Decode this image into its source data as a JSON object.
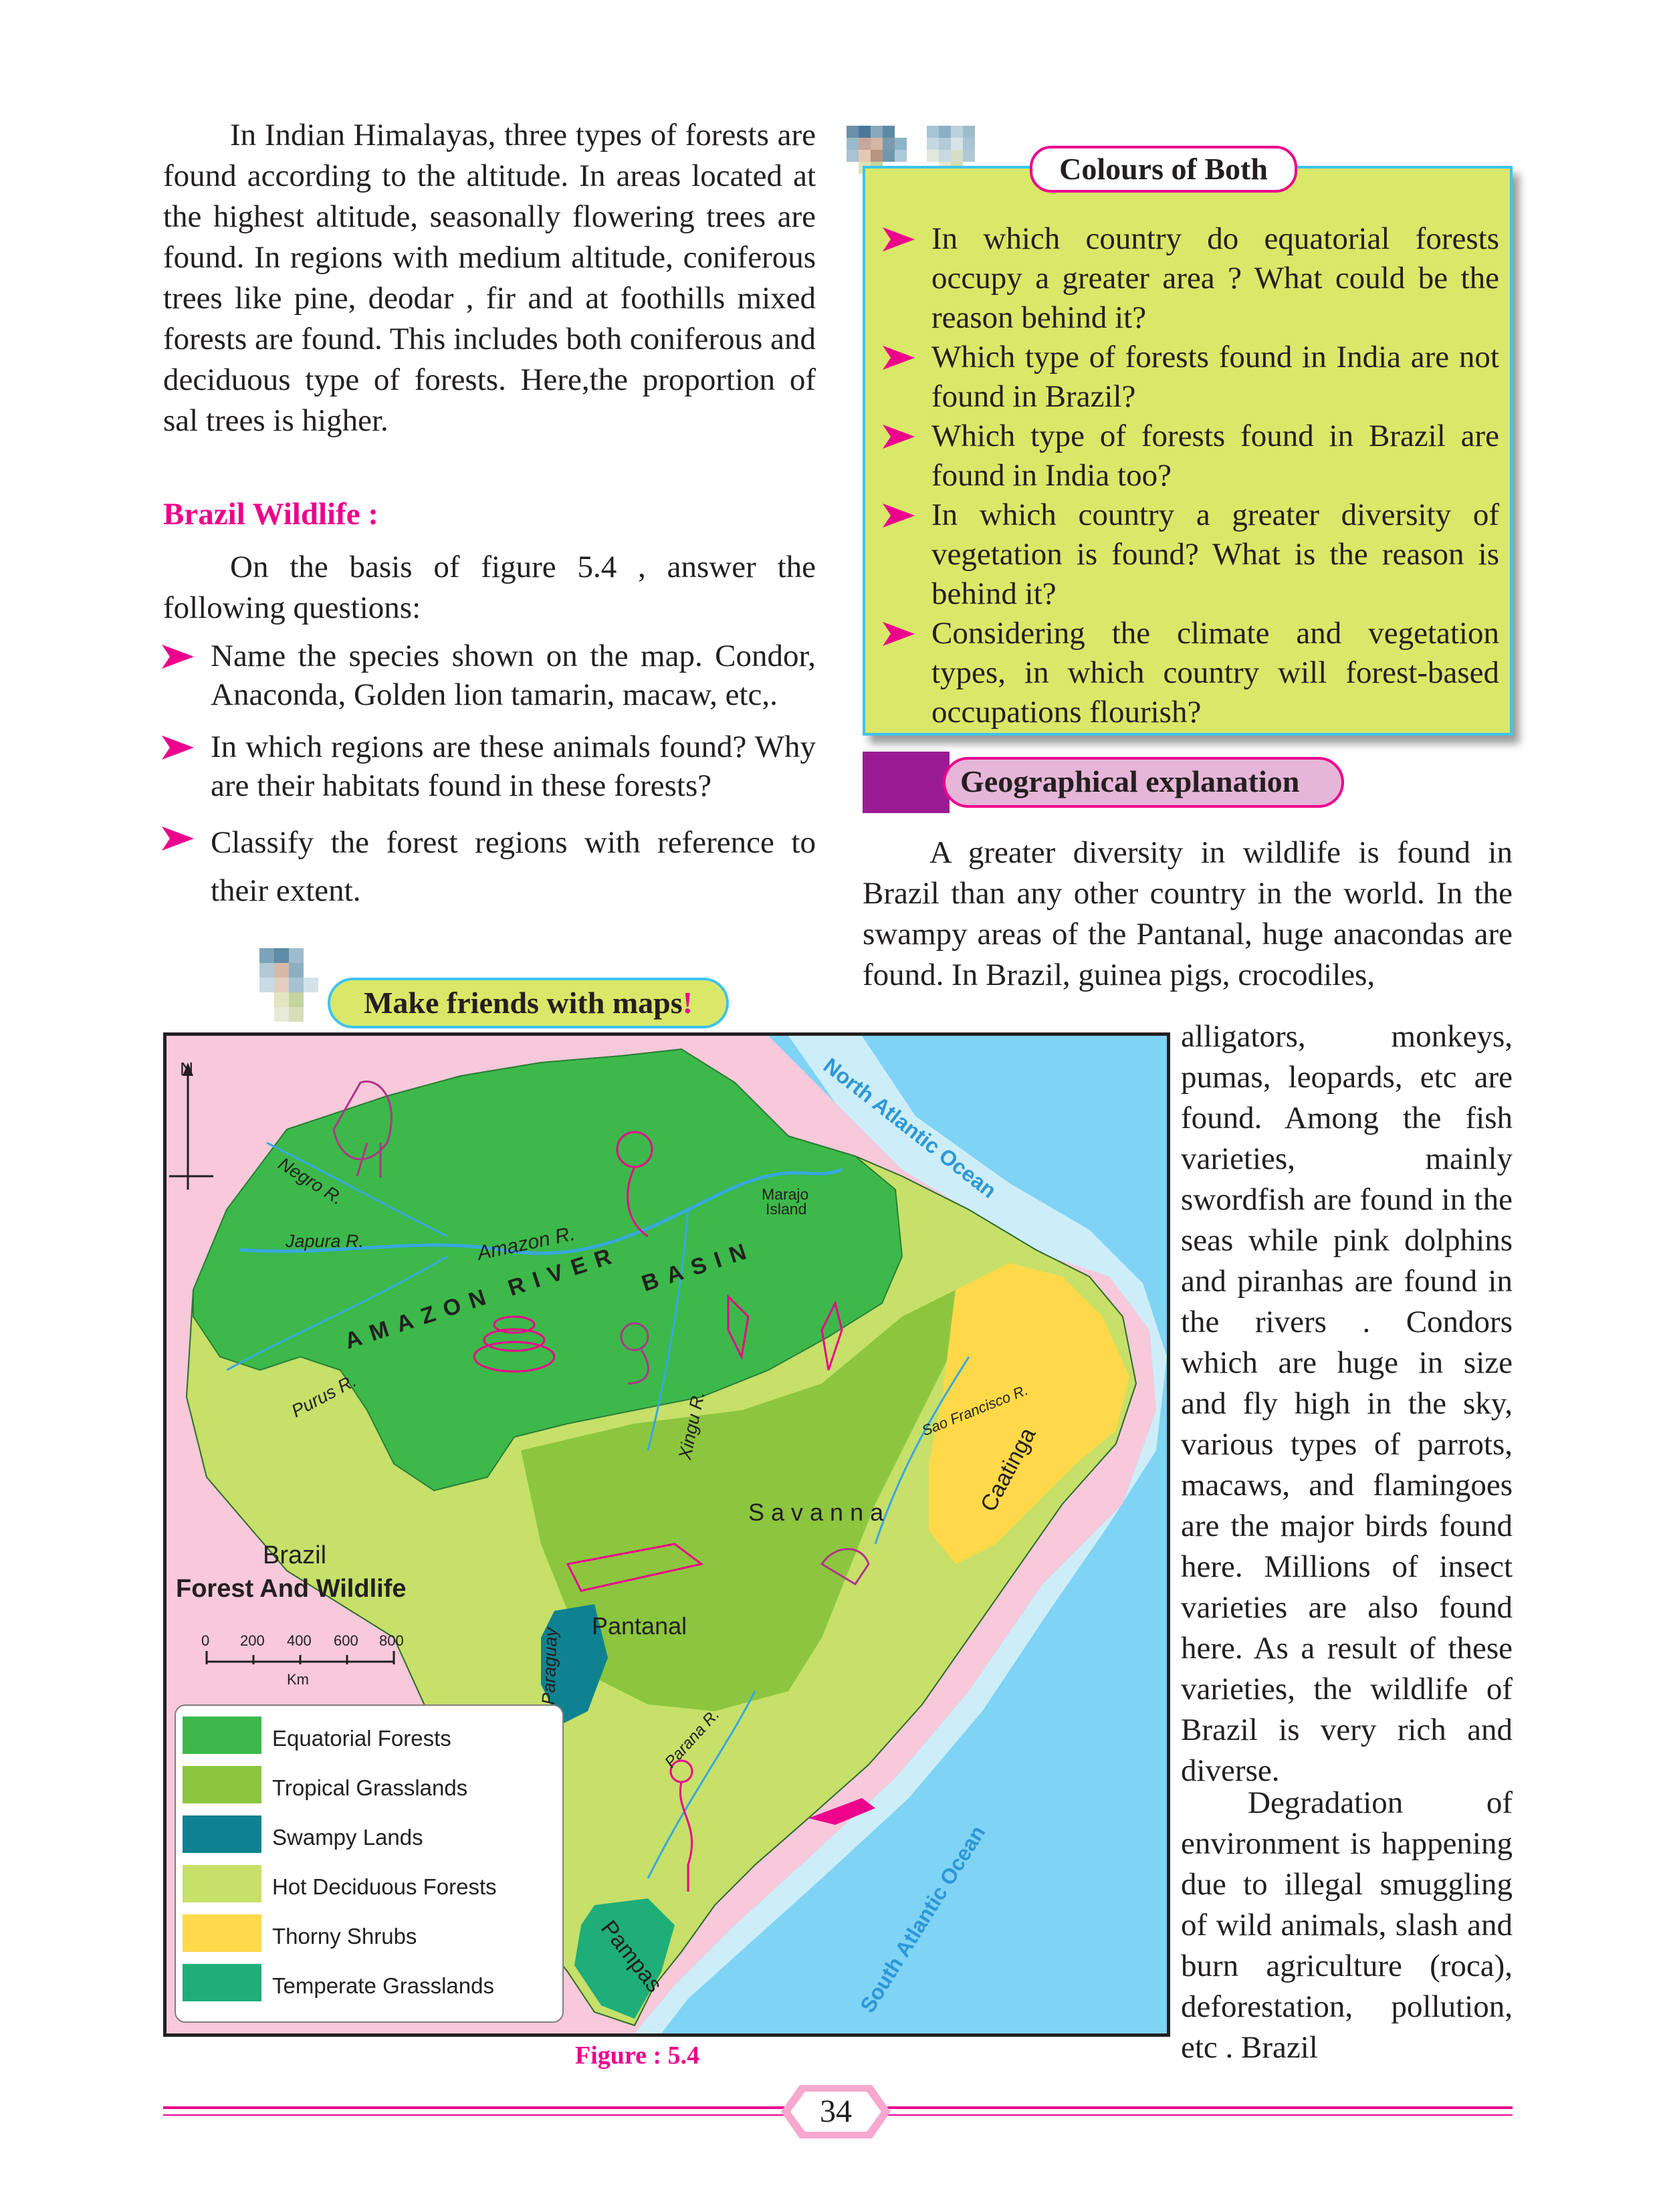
{
  "left_column": {
    "intro_paragraph": "In Indian Himalayas, three types of forests are found according to the altitude. In areas located at the highest altitude, seasonally flowering trees are found. In regions with medium altitude, coniferous trees like pine, deodar , fir and at foothills mixed forests are found. This includes both coniferous and deciduous type of forests. Here,the proportion of sal trees is higher.",
    "brazil_heading": "Brazil Wildlife :",
    "brazil_intro": "On the basis of figure 5.4 , answer the following questions:",
    "questions": [
      "Name the species shown on the map. Condor, Anaconda, Golden lion tamarin, macaw, etc,.",
      "In which regions are these animals found? Why are their habitats found in these forests?",
      "Classify the forest regions with reference to their extent."
    ]
  },
  "colours_box": {
    "title": "Colours of Both",
    "items": [
      "In which country do equatorial forests occupy a greater area ? What could be the reason behind it?",
      "Which type of forests found in India are not found in Brazil?",
      "Which type of forests found in Brazil are found in India too?",
      "In which country a greater diversity of vegetation is found? What is the reason is behind it?",
      "Considering the climate and vegetation types, in which country will forest-based occupations flourish?"
    ]
  },
  "geo_section": {
    "title": "Geographical explanation",
    "para1_wide": "A greater diversity in wildlife is found in Brazil than any other country in the world. In the swampy areas of the Pantanal, huge anacondas are found. In Brazil, guinea pigs, crocodiles,",
    "para1_narrow": "alligators, monkeys, pumas, leopards, etc are found. Among the fish varieties, mainly swordfish are found in the seas while pink dolphins and piranhas are found in the rivers . Condors which are huge in size and fly high in the sky, various types of parrots, macaws, and flamingoes are the major birds found here. Millions of insect varieties are also found here. As a result of these varieties, the wildlife of Brazil is very rich and diverse.",
    "para2": "Degradation of environment is happening due to illegal smuggling of wild animals, slash and burn agriculture (roca), deforestation, pollution, etc . Brazil"
  },
  "map_section": {
    "tag": "Make friends with maps",
    "tag_mark": "!",
    "caption": "Figure : 5.4",
    "title_line1": "Brazil",
    "title_line2": "Forest And Wildlife",
    "north": "N",
    "scale_ticks": [
      "0",
      "200",
      "400",
      "600",
      "800"
    ],
    "scale_unit": "Km",
    "labels": {
      "north_atlantic": "North Atlantic Ocean",
      "south_atlantic": "South Atlantic Ocean",
      "negro": "Negro R.",
      "japura": "Japura R.",
      "amazon": "Amazon R.",
      "basin_left": "AMAZON RIVER",
      "basin_right": "BASIN",
      "purus": "Purus R.",
      "xingu": "Xingu R.",
      "marajo1": "Marajo",
      "marajo2": "Island",
      "sao_francisco": "Sao Francisco R.",
      "caatinga": "Caatinga",
      "savanna": "Savanna",
      "pantanal": "Pantanal",
      "paraguay": "Paraguay",
      "parana": "Parana R.",
      "pampas": "Pampas"
    },
    "legend": [
      {
        "label": "Equatorial Forests",
        "color": "#3cb94a"
      },
      {
        "label": "Tropical Grasslands",
        "color": "#8cc63f"
      },
      {
        "label": "Swampy Lands",
        "color": "#0e8290"
      },
      {
        "label": "Hot Deciduous Forests",
        "color": "#c6e06a"
      },
      {
        "label": "Thorny Shrubs",
        "color": "#ffd94a"
      },
      {
        "label": "Temperate Grasslands",
        "color": "#1fae78"
      }
    ]
  },
  "page_number": "34",
  "colors": {
    "accent_pink": "#ec008c",
    "box_fill": "#d9e868",
    "box_border": "#3ec3ee",
    "ocean": "#7fd3f5",
    "land_outside": "#f7c9da"
  }
}
